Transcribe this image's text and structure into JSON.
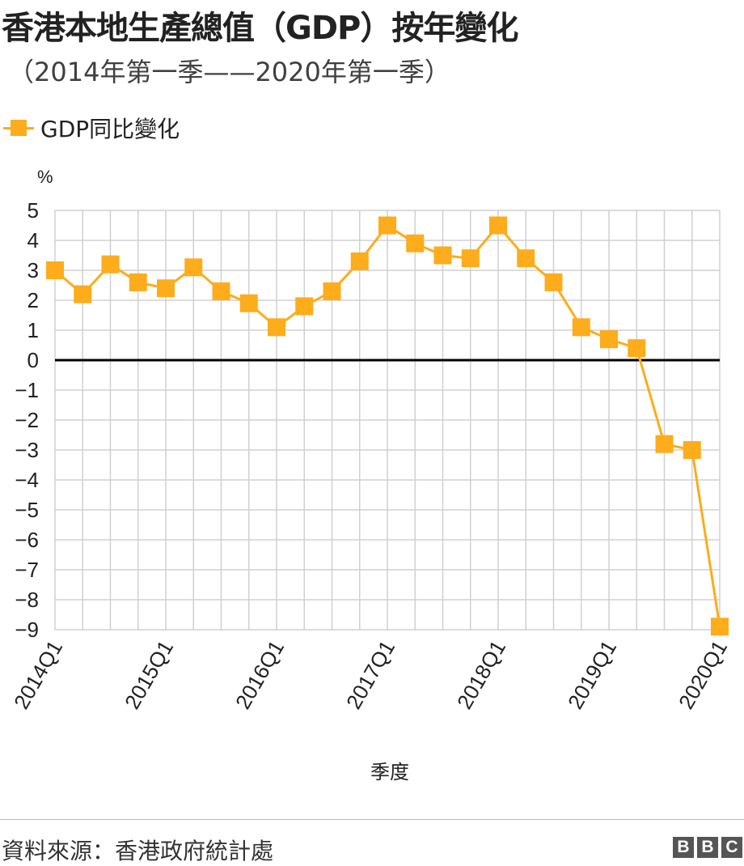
{
  "title": "香港本地生產總值（GDP）按年變化",
  "subtitle": "（2014年第一季——2020年第一季）",
  "source": "資料來源：香港政府統計處",
  "logo": [
    "B",
    "B",
    "C"
  ],
  "chart_data": {
    "type": "line",
    "title": "香港本地生產總值（GDP）按年變化",
    "ylabel": "%",
    "xlabel": "季度",
    "ylim": [
      -9,
      5
    ],
    "yticks": [
      5,
      4,
      3,
      2,
      1,
      0,
      -1,
      -2,
      -3,
      -4,
      -5,
      -6,
      -7,
      -8,
      -9
    ],
    "yticklabels": [
      "5",
      "4",
      "3",
      "2",
      "1",
      "0",
      "−1",
      "−2",
      "−3",
      "−4",
      "−5",
      "−6",
      "−7",
      "−8",
      "−9"
    ],
    "grid": true,
    "legend": "top-left",
    "color": "#fdac1b",
    "x": [
      "2014Q1",
      "2014Q2",
      "2014Q3",
      "2014Q4",
      "2015Q1",
      "2015Q2",
      "2015Q3",
      "2015Q4",
      "2016Q1",
      "2016Q2",
      "2016Q3",
      "2016Q4",
      "2017Q1",
      "2017Q2",
      "2017Q3",
      "2017Q4",
      "2018Q1",
      "2018Q2",
      "2018Q3",
      "2018Q4",
      "2019Q1",
      "2019Q2",
      "2019Q3",
      "2019Q4",
      "2020Q1"
    ],
    "xticklabels": [
      "2014Q1",
      "2015Q1",
      "2016Q1",
      "2017Q1",
      "2018Q1",
      "2019Q1",
      "2020Q1"
    ],
    "series": [
      {
        "name": "GDP同比變化",
        "values": [
          3.0,
          2.2,
          3.2,
          2.6,
          2.4,
          3.1,
          2.3,
          1.9,
          1.1,
          1.8,
          2.3,
          3.3,
          4.5,
          3.9,
          3.5,
          3.4,
          4.5,
          3.4,
          2.6,
          1.1,
          0.7,
          0.4,
          -2.8,
          -3.0,
          -8.9
        ]
      }
    ]
  }
}
